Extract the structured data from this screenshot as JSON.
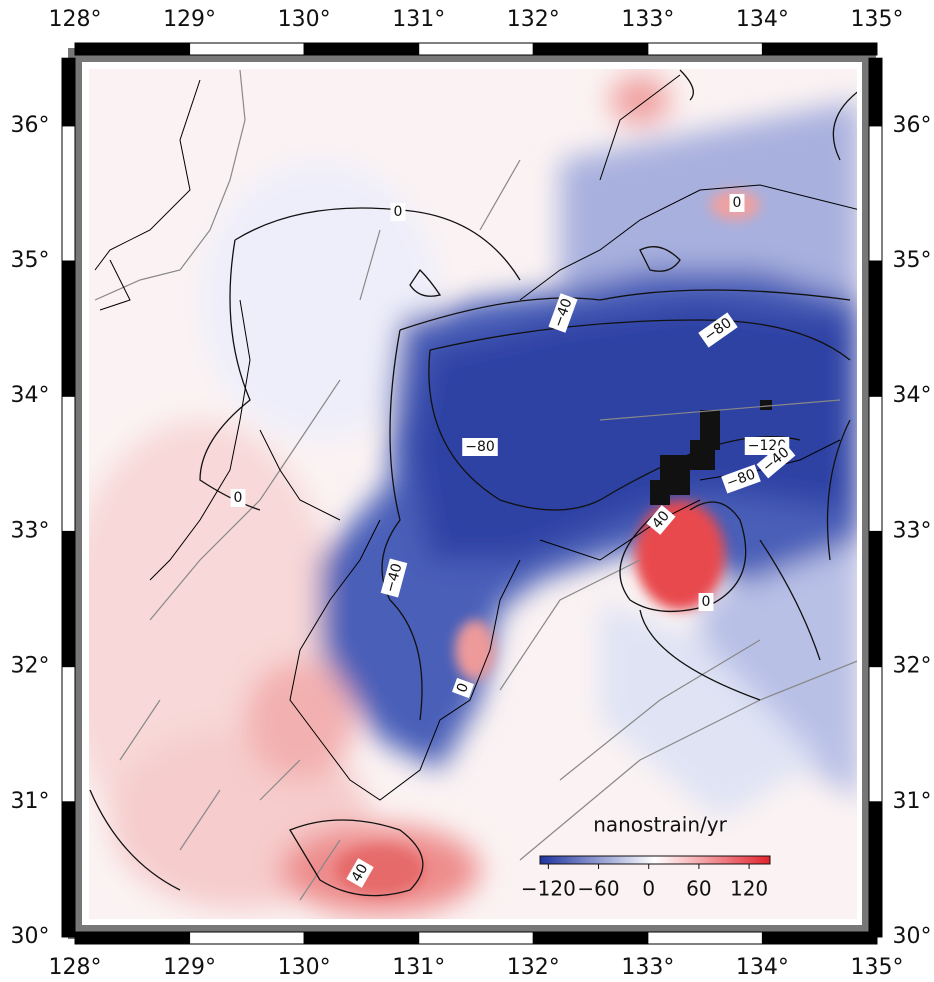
{
  "map": {
    "lonlim": [
      128,
      135
    ],
    "latlim": [
      30,
      36.5
    ],
    "lon_ticks": [
      {
        "value": 128,
        "label": "128°"
      },
      {
        "value": 129,
        "label": "129°"
      },
      {
        "value": 130,
        "label": "130°"
      },
      {
        "value": 131,
        "label": "131°"
      },
      {
        "value": 132,
        "label": "132°"
      },
      {
        "value": 133,
        "label": "133°"
      },
      {
        "value": 134,
        "label": "134°"
      },
      {
        "value": 135,
        "label": "135°"
      }
    ],
    "lat_ticks": [
      {
        "value": 30,
        "label": "30°"
      },
      {
        "value": 31,
        "label": "31°"
      },
      {
        "value": 32,
        "label": "32°"
      },
      {
        "value": 33,
        "label": "33°"
      },
      {
        "value": 34,
        "label": "34°"
      },
      {
        "value": 35,
        "label": "35°"
      },
      {
        "value": 36,
        "label": "36°"
      }
    ],
    "contour_labels": [
      "0",
      "0",
      "−40",
      "−80",
      "−80",
      "−120",
      "−40",
      "−80",
      "40",
      "−40",
      "0",
      "0",
      "0",
      "40"
    ],
    "colorbar": {
      "title": "nanostrain/yr",
      "range": [
        -130,
        145
      ],
      "colors": [
        "#1f34a0",
        "#ffffff",
        "#e3222c"
      ],
      "ticks": [
        {
          "value": -120,
          "label": "−120"
        },
        {
          "value": -60,
          "label": "−60"
        },
        0,
        {
          "value": 60,
          "label": "60"
        },
        {
          "value": 120,
          "label": "120"
        }
      ]
    }
  }
}
